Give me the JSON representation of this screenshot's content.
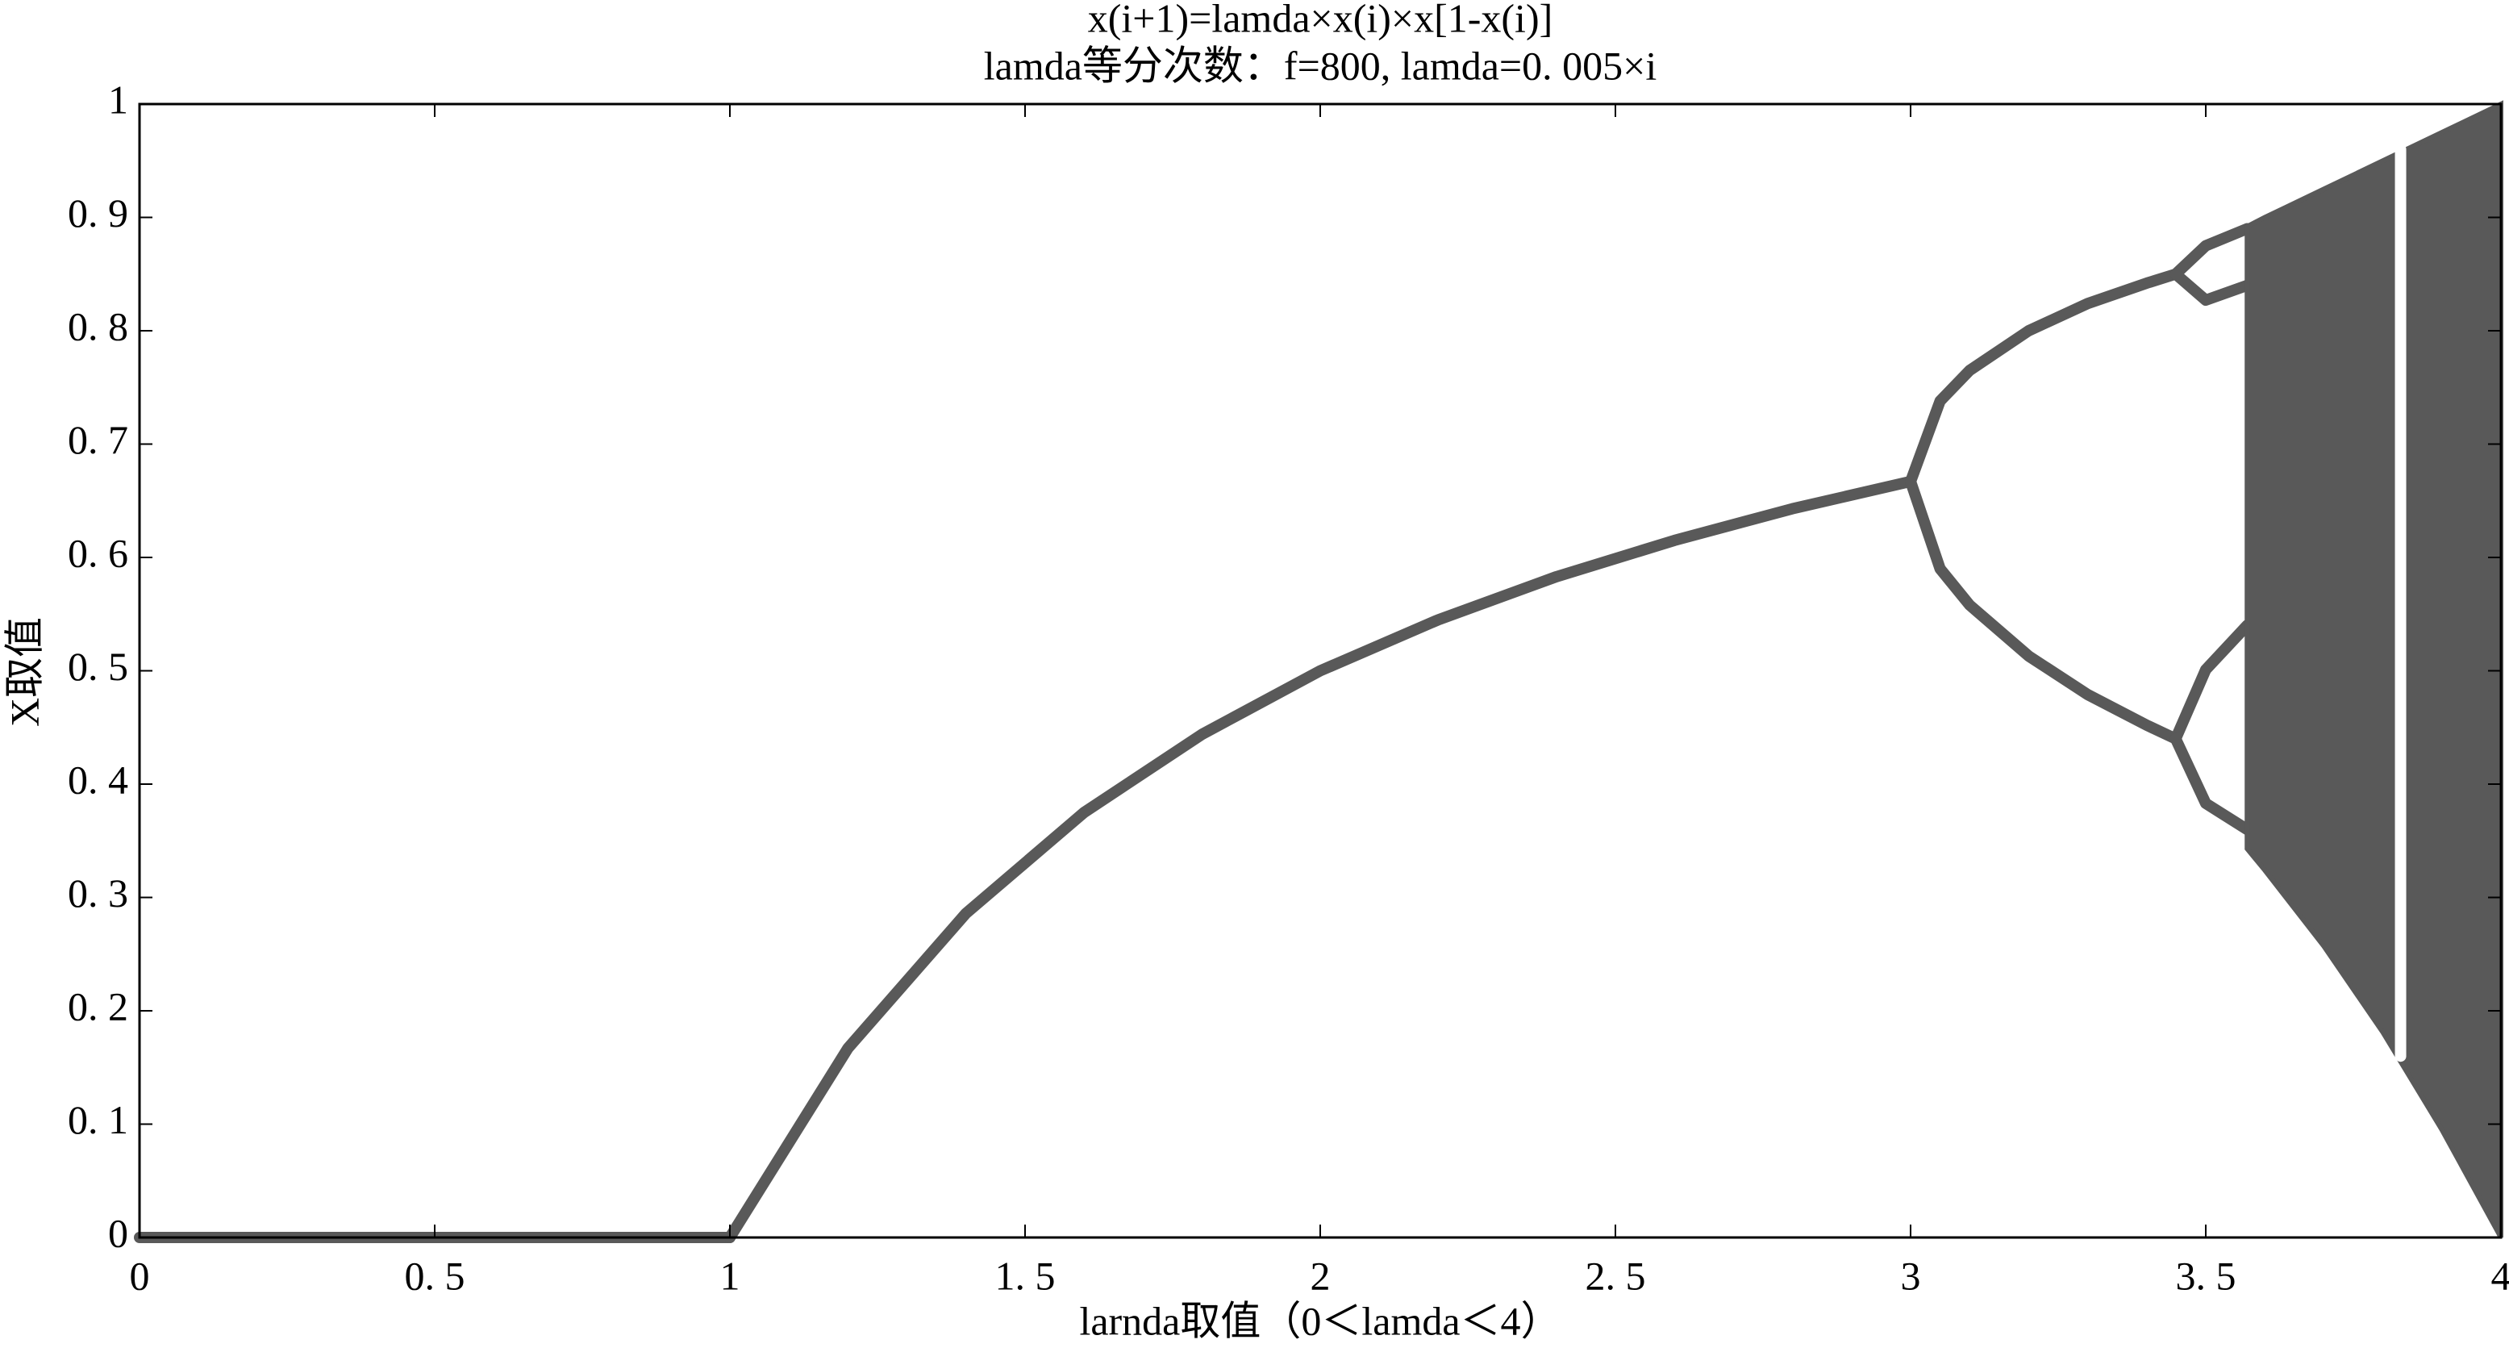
{
  "chart_data": {
    "type": "scatter",
    "title": "x(i+1)=lamda×x(i)×x[1-x(i)]",
    "subtitle": "lamda等分次数：f=800, lamda=0. 005×i",
    "x_label": "larnda取值（0＜lamda＜4）",
    "y_label": "X取值",
    "xlim": [
      0,
      4
    ],
    "ylim": [
      0,
      1
    ],
    "xticks": [
      0,
      {
        "value": 0.5,
        "label": "0. 5"
      },
      1,
      {
        "value": 1.5,
        "label": "1. 5"
      },
      2,
      {
        "value": 2.5,
        "label": "2. 5"
      },
      3,
      {
        "value": 3.5,
        "label": "3. 5"
      },
      4
    ],
    "yticks": [
      0,
      {
        "value": 0.1,
        "label": "0. 1"
      },
      {
        "value": 0.2,
        "label": "0. 2"
      },
      {
        "value": 0.3,
        "label": "0. 3"
      },
      {
        "value": 0.4,
        "label": "0. 4"
      },
      {
        "value": 0.5,
        "label": "0. 5"
      },
      {
        "value": 0.6,
        "label": "0. 6"
      },
      {
        "value": 0.7,
        "label": "0. 7"
      },
      {
        "value": 0.8,
        "label": "0. 8"
      },
      {
        "value": 0.9,
        "label": "0. 9"
      },
      1
    ],
    "grid": false,
    "series": [
      {
        "color": "#595959",
        "x": [
          0,
          1
        ],
        "values": [
          0,
          0
        ]
      },
      {
        "color": "#595959",
        "x": [
          1,
          1.2,
          1.4,
          1.6,
          1.8,
          2,
          2.2,
          2.4,
          2.6,
          2.8,
          3
        ],
        "values": [
          0,
          0.167,
          0.286,
          0.375,
          0.444,
          0.5,
          0.545,
          0.583,
          0.615,
          0.643,
          0.667
        ]
      },
      {
        "color": "#595959",
        "x": [
          3,
          3.05,
          3.1,
          3.2,
          3.3,
          3.4,
          3.449
        ],
        "values": [
          0.667,
          0.738,
          0.765,
          0.8,
          0.824,
          0.842,
          0.85
        ]
      },
      {
        "color": "#595959",
        "x": [
          3,
          3.05,
          3.1,
          3.2,
          3.3,
          3.4,
          3.449
        ],
        "values": [
          0.667,
          0.59,
          0.558,
          0.513,
          0.479,
          0.452,
          0.44
        ]
      },
      {
        "color": "#595959",
        "x": [
          3.449,
          3.5,
          3.57
        ],
        "values": [
          0.85,
          0.875,
          0.89
        ]
      },
      {
        "color": "#595959",
        "x": [
          3.449,
          3.5,
          3.57
        ],
        "values": [
          0.85,
          0.827,
          0.84
        ]
      },
      {
        "color": "#595959",
        "x": [
          3.449,
          3.5,
          3.57
        ],
        "values": [
          0.44,
          0.501,
          0.54
        ]
      },
      {
        "color": "#595959",
        "x": [
          3.449,
          3.5,
          3.57
        ],
        "values": [
          0.44,
          0.383,
          0.36
        ]
      },
      {
        "color": "#595959",
        "x": [
          3.57,
          3.6,
          3.7,
          3.8,
          3.9,
          4
        ],
        "values": [
          0.892,
          0.9,
          0.925,
          0.95,
          0.975,
          1
        ],
        "low": [
          0.343,
          0.324,
          0.257,
          0.181,
          0.095,
          0
        ]
      },
      {
        "color": "#ffffff",
        "x": [
          3.83,
          3.83
        ],
        "values": [
          0.16,
          0.96
        ]
      }
    ]
  }
}
